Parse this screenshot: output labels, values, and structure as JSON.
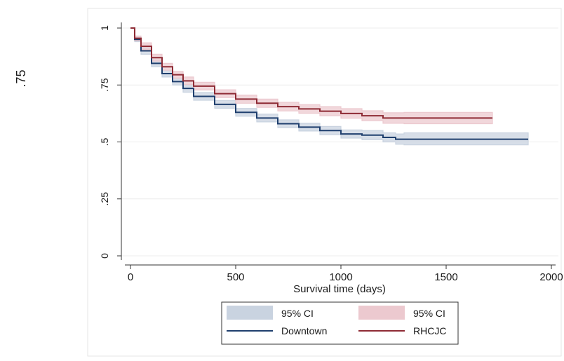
{
  "page": {
    "side_label": ".75"
  },
  "chart_data": {
    "type": "line",
    "title": "",
    "xlabel": "Survival time (days)",
    "ylabel": "",
    "xlim": [
      0,
      2000
    ],
    "ylim": [
      0,
      1
    ],
    "x_ticks": [
      0,
      500,
      1000,
      1500,
      2000
    ],
    "x_tick_labels": [
      "0",
      "500",
      "1000",
      "1500",
      "2000"
    ],
    "y_ticks": [
      0,
      0.25,
      0.5,
      0.75,
      1
    ],
    "y_tick_labels": [
      "0",
      ".25",
      ".5",
      ".75",
      "1"
    ],
    "grid": "horizontal",
    "legend_position": "bottom",
    "legend": [
      {
        "label": "95% CI",
        "kind": "band",
        "color": "#c9d3e0"
      },
      {
        "label": "95% CI",
        "kind": "band",
        "color": "#ecc9cf"
      },
      {
        "label": "Downtown",
        "kind": "line",
        "color": "#1f3f6e"
      },
      {
        "label": "RHCJC",
        "kind": "line",
        "color": "#8e2b35"
      }
    ],
    "series": [
      {
        "name": "Downtown",
        "color": "#1f3f6e",
        "band_color": "#c9d3e0",
        "x": [
          0,
          20,
          50,
          100,
          150,
          200,
          250,
          300,
          400,
          500,
          600,
          700,
          800,
          900,
          1000,
          1100,
          1200,
          1260,
          1300,
          1400,
          1500,
          1600,
          1700,
          1800,
          1890
        ],
        "y": [
          1.0,
          0.95,
          0.9,
          0.845,
          0.8,
          0.765,
          0.735,
          0.7,
          0.665,
          0.63,
          0.605,
          0.58,
          0.565,
          0.55,
          0.535,
          0.53,
          0.52,
          0.512,
          0.512,
          0.512,
          0.512,
          0.512,
          0.512,
          0.512,
          0.512
        ],
        "ci_lower": [
          1.0,
          0.94,
          0.885,
          0.83,
          0.785,
          0.75,
          0.718,
          0.683,
          0.648,
          0.613,
          0.588,
          0.563,
          0.548,
          0.532,
          0.517,
          0.51,
          0.5,
          0.49,
          0.487,
          0.487,
          0.487,
          0.487,
          0.487,
          0.487,
          0.487
        ],
        "ci_upper": [
          1.0,
          0.96,
          0.915,
          0.86,
          0.815,
          0.78,
          0.752,
          0.717,
          0.682,
          0.647,
          0.622,
          0.597,
          0.582,
          0.568,
          0.553,
          0.55,
          0.54,
          0.535,
          0.54,
          0.54,
          0.54,
          0.54,
          0.54,
          0.54,
          0.54
        ]
      },
      {
        "name": "RHCJC",
        "color": "#8e2b35",
        "band_color": "#ecc9cf",
        "x": [
          0,
          20,
          50,
          100,
          150,
          200,
          250,
          300,
          400,
          500,
          600,
          700,
          800,
          900,
          1000,
          1100,
          1200,
          1300,
          1400,
          1500,
          1600,
          1720
        ],
        "y": [
          1.0,
          0.955,
          0.92,
          0.87,
          0.83,
          0.795,
          0.768,
          0.745,
          0.712,
          0.688,
          0.67,
          0.655,
          0.645,
          0.635,
          0.625,
          0.615,
          0.605,
          0.605,
          0.605,
          0.605,
          0.605,
          0.605
        ],
        "ci_lower": [
          1.0,
          0.945,
          0.905,
          0.855,
          0.815,
          0.78,
          0.752,
          0.728,
          0.695,
          0.67,
          0.652,
          0.636,
          0.626,
          0.615,
          0.604,
          0.593,
          0.582,
          0.58,
          0.58,
          0.58,
          0.58,
          0.58
        ],
        "ci_upper": [
          1.0,
          0.965,
          0.935,
          0.885,
          0.845,
          0.81,
          0.785,
          0.762,
          0.729,
          0.706,
          0.688,
          0.674,
          0.664,
          0.655,
          0.646,
          0.637,
          0.628,
          0.63,
          0.63,
          0.63,
          0.63,
          0.63
        ]
      }
    ]
  }
}
